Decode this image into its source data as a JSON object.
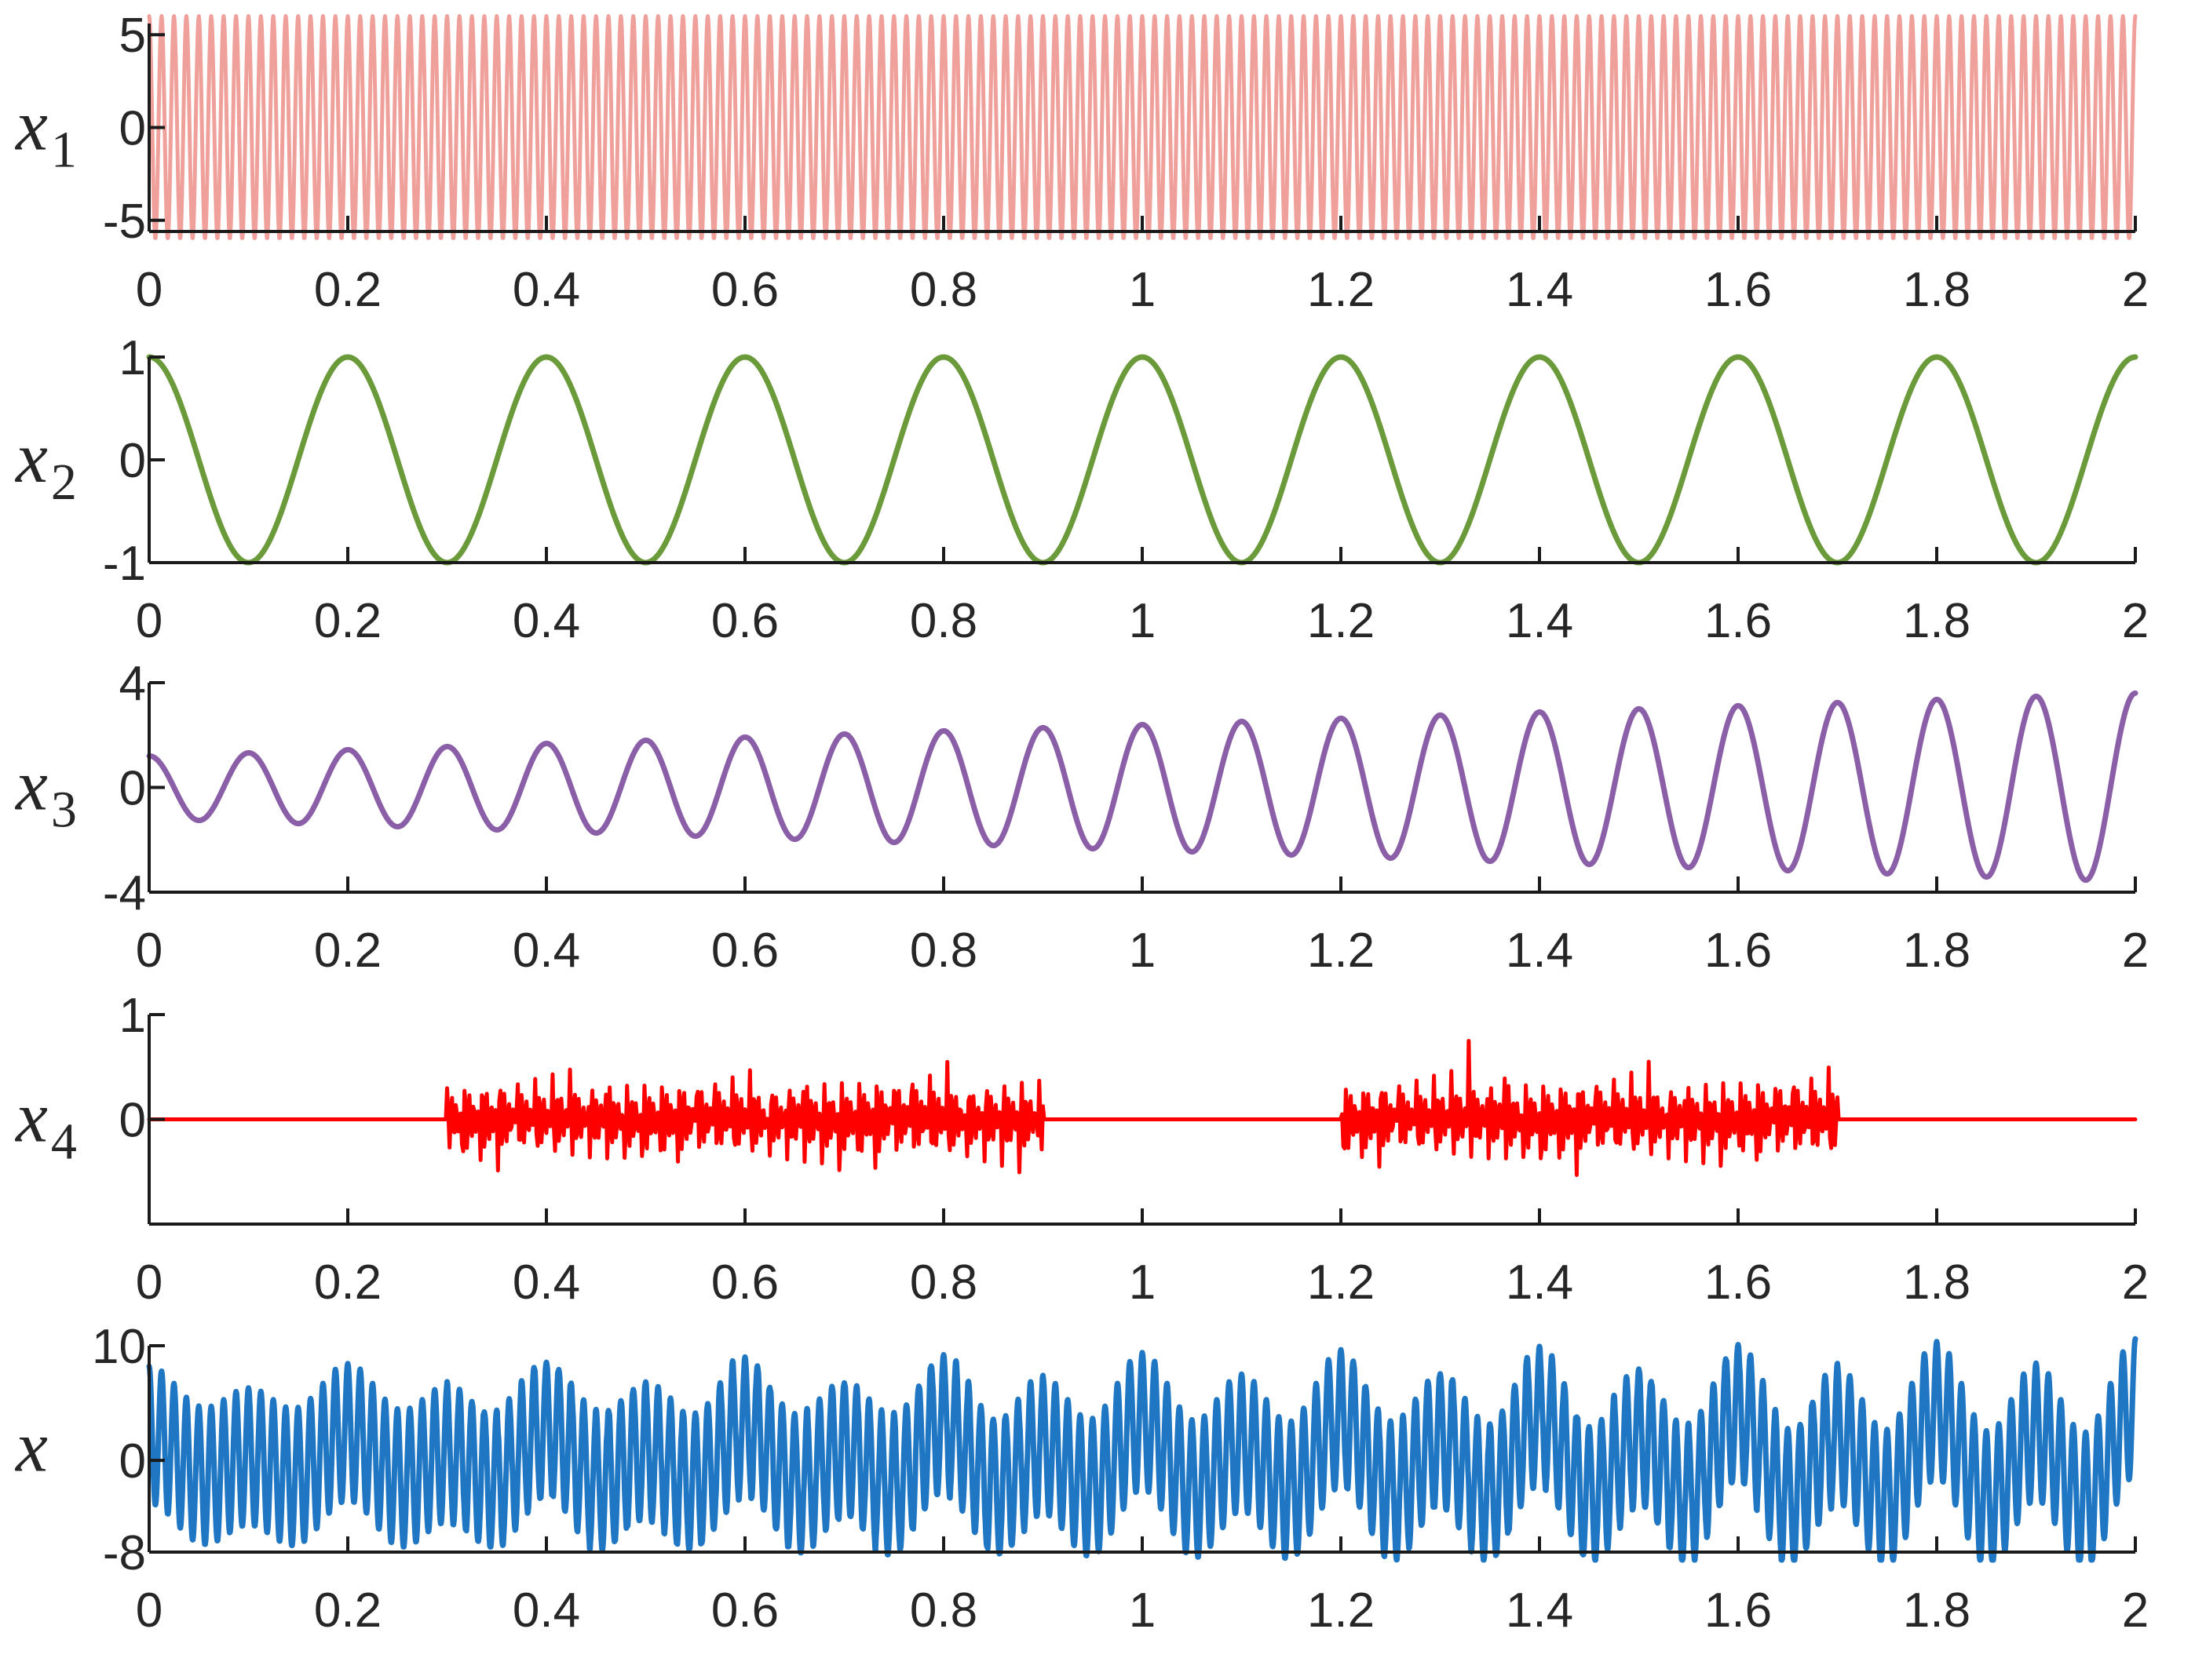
{
  "chart_data": [
    {
      "type": "line",
      "ylabel": "x",
      "ylabel_sub": "1",
      "series": [
        {
          "color": "#f0a09a",
          "signal": "sine",
          "amplitude": 6,
          "frequency_hz": 80,
          "phase_deg": 90,
          "samples": 4000
        }
      ],
      "xlim": [
        0,
        2
      ],
      "ylim": [
        -5.6,
        5.6
      ],
      "xticks": [
        "0",
        "0.2",
        "0.4",
        "0.6",
        "0.8",
        "1",
        "1.2",
        "1.4",
        "1.6",
        "1.8",
        "2"
      ],
      "yticks": [
        {
          "value": 5,
          "label": "5"
        },
        {
          "value": 0,
          "label": "0"
        },
        {
          "value": -5,
          "label": "-5"
        }
      ],
      "grid": false
    },
    {
      "type": "line",
      "ylabel": "x",
      "ylabel_sub": "2",
      "series": [
        {
          "color": "#6a9a3a",
          "signal": "sine",
          "amplitude": 1,
          "frequency_hz": 5,
          "phase_deg": 90,
          "samples": 1200
        }
      ],
      "xlim": [
        0,
        2
      ],
      "ylim": [
        -1,
        1
      ],
      "xticks": [
        "0",
        "0.2",
        "0.4",
        "0.6",
        "0.8",
        "1",
        "1.2",
        "1.4",
        "1.6",
        "1.8",
        "2"
      ],
      "yticks": [
        {
          "value": 1,
          "label": "1"
        },
        {
          "value": 0,
          "label": "0"
        },
        {
          "value": -1,
          "label": "-1"
        }
      ],
      "grid": false
    },
    {
      "type": "line",
      "ylabel": "x",
      "ylabel_sub": "3",
      "series": [
        {
          "color": "#8b5fa8",
          "signal": "growing-sine",
          "amplitude_start": 1.2,
          "amplitude_end": 3.6,
          "frequency_hz": 10,
          "phase_deg": 90,
          "samples": 2000
        }
      ],
      "xlim": [
        0,
        2
      ],
      "ylim": [
        -4,
        4
      ],
      "xticks": [
        "0",
        "0.2",
        "0.4",
        "0.6",
        "0.8",
        "1",
        "1.2",
        "1.4",
        "1.6",
        "1.8",
        "2"
      ],
      "yticks": [
        {
          "value": 4,
          "label": "4"
        },
        {
          "value": 0,
          "label": "0"
        },
        {
          "value": -4,
          "label": "-4"
        }
      ],
      "grid": false
    },
    {
      "type": "line",
      "ylabel": "x",
      "ylabel_sub": "4",
      "series": [
        {
          "color": "#ff0000",
          "signal": "noise-bursts",
          "bursts": [
            [
              0.3,
              0.9
            ],
            [
              1.2,
              1.7
            ]
          ],
          "noise_std": 0.18,
          "samples": 1600
        }
      ],
      "xlim": [
        0,
        2
      ],
      "ylim": [
        -1,
        1
      ],
      "xticks": [
        "0",
        "0.2",
        "0.4",
        "0.6",
        "0.8",
        "1",
        "1.2",
        "1.4",
        "1.6",
        "1.8",
        "2"
      ],
      "yticks": [
        {
          "value": 1,
          "label": "1"
        },
        {
          "value": 0,
          "label": "0"
        }
      ],
      "grid": false
    },
    {
      "type": "line",
      "ylabel": "x",
      "ylabel_sub": "",
      "series": [
        {
          "color": "#1f77c4",
          "signal": "sum",
          "components": [
            "x1",
            "x2",
            "x3",
            "x4"
          ],
          "samples": 4000
        }
      ],
      "xlim": [
        0,
        2
      ],
      "ylim": [
        -8,
        10
      ],
      "xticks": [
        "0",
        "0.2",
        "0.4",
        "0.6",
        "0.8",
        "1",
        "1.2",
        "1.4",
        "1.6",
        "1.8",
        "2"
      ],
      "yticks": [
        {
          "value": 10,
          "label": "10"
        },
        {
          "value": 0,
          "label": "0"
        },
        {
          "value": -8,
          "label": "-8"
        }
      ],
      "grid": false
    }
  ]
}
